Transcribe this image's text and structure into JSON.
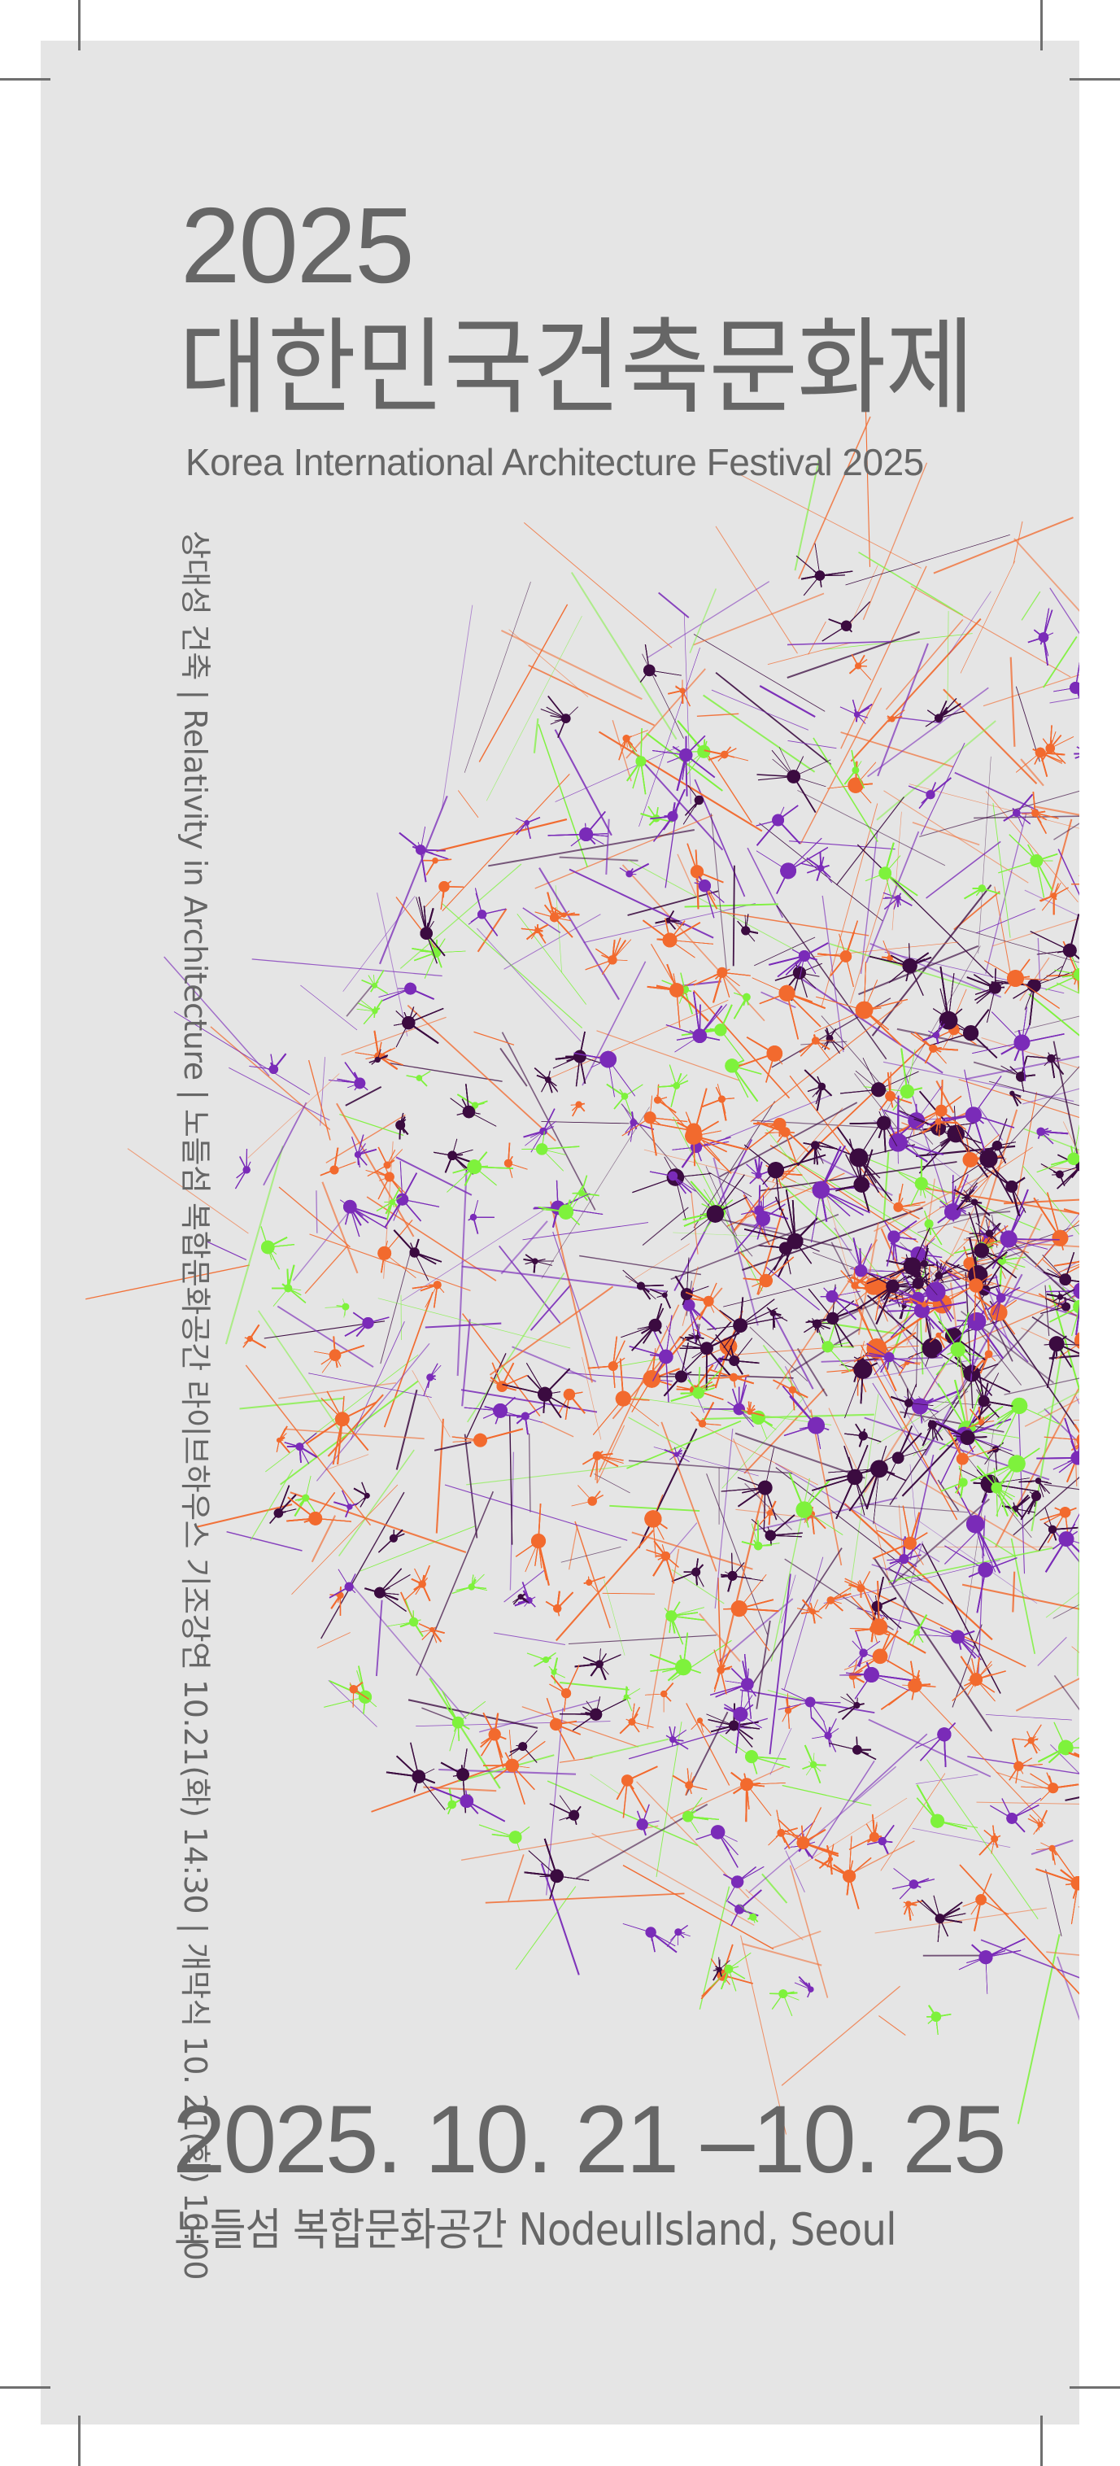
{
  "poster": {
    "year": "2025",
    "title_ko": "대한민국건축문화제",
    "title_en": "Korea International Architecture Festival 2025",
    "vertical_info": "상대성 건축 | Relativity in Architecture | 노들섬 복합문화공간 라이브하우스 기조강연 10.21(화) 14:30 | 개막식 10. 21(화) 16:00",
    "dates": "2025. 10. 21 –10. 25",
    "venue": "노들섬 복합문화공간 NodeulIsland, Seoul"
  },
  "colors": {
    "paper": "#e5e5e5",
    "text": "#666666",
    "art_orange": "#f26a2e",
    "art_purple": "#7a2bb8",
    "art_dark_purple": "#3b0b40",
    "art_green": "#7ef23c"
  }
}
